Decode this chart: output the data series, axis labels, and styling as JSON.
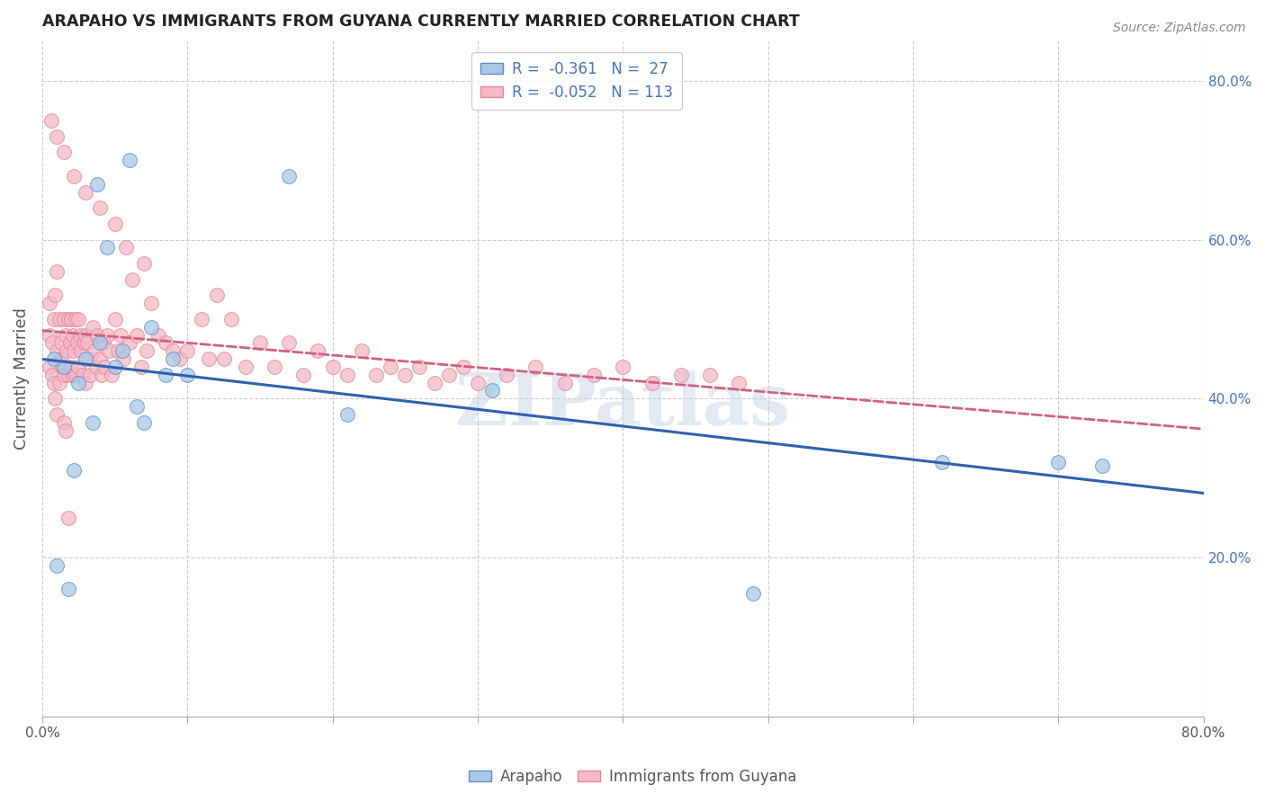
{
  "title": "ARAPAHO VS IMMIGRANTS FROM GUYANA CURRENTLY MARRIED CORRELATION CHART",
  "source": "Source: ZipAtlas.com",
  "ylabel": "Currently Married",
  "xlim": [
    0.0,
    0.8
  ],
  "ylim": [
    0.0,
    0.85
  ],
  "arapaho_color": "#a8c8e8",
  "arapaho_edge": "#6090c0",
  "guyana_color": "#f4b8c8",
  "guyana_edge": "#e08898",
  "trend_arapaho_color": "#3060b0",
  "trend_guyana_color": "#d06080",
  "background_color": "#ffffff",
  "grid_color": "#cccccc",
  "watermark": "ZIPatlas",
  "arapaho_x": [
    0.015,
    0.06,
    0.17,
    0.01,
    0.31,
    0.03,
    0.045,
    0.09,
    0.075,
    0.05,
    0.035,
    0.025,
    0.018,
    0.04,
    0.055,
    0.07,
    0.1,
    0.065,
    0.21,
    0.62,
    0.7,
    0.008,
    0.022,
    0.49,
    0.73,
    0.038,
    0.085
  ],
  "arapaho_y": [
    0.44,
    0.7,
    0.68,
    0.19,
    0.41,
    0.45,
    0.59,
    0.45,
    0.49,
    0.44,
    0.37,
    0.42,
    0.16,
    0.47,
    0.46,
    0.37,
    0.43,
    0.39,
    0.38,
    0.32,
    0.32,
    0.45,
    0.31,
    0.155,
    0.315,
    0.67,
    0.43
  ],
  "guyana_x": [
    0.005,
    0.005,
    0.005,
    0.007,
    0.007,
    0.008,
    0.008,
    0.009,
    0.009,
    0.01,
    0.01,
    0.01,
    0.012,
    0.012,
    0.013,
    0.013,
    0.014,
    0.015,
    0.015,
    0.015,
    0.016,
    0.016,
    0.017,
    0.018,
    0.018,
    0.019,
    0.02,
    0.02,
    0.021,
    0.021,
    0.022,
    0.023,
    0.023,
    0.024,
    0.025,
    0.025,
    0.026,
    0.027,
    0.028,
    0.029,
    0.03,
    0.03,
    0.031,
    0.032,
    0.033,
    0.035,
    0.036,
    0.037,
    0.038,
    0.04,
    0.041,
    0.042,
    0.043,
    0.045,
    0.046,
    0.048,
    0.05,
    0.052,
    0.054,
    0.056,
    0.058,
    0.06,
    0.062,
    0.065,
    0.068,
    0.07,
    0.072,
    0.075,
    0.08,
    0.085,
    0.09,
    0.095,
    0.1,
    0.11,
    0.115,
    0.12,
    0.125,
    0.13,
    0.14,
    0.15,
    0.16,
    0.17,
    0.18,
    0.19,
    0.2,
    0.21,
    0.22,
    0.23,
    0.24,
    0.25,
    0.26,
    0.27,
    0.28,
    0.29,
    0.3,
    0.32,
    0.34,
    0.36,
    0.38,
    0.4,
    0.42,
    0.44,
    0.46,
    0.48,
    0.015,
    0.022,
    0.03,
    0.04,
    0.05,
    0.006,
    0.01,
    0.018
  ],
  "guyana_y": [
    0.48,
    0.44,
    0.52,
    0.47,
    0.43,
    0.5,
    0.42,
    0.53,
    0.4,
    0.56,
    0.46,
    0.38,
    0.5,
    0.42,
    0.47,
    0.45,
    0.44,
    0.5,
    0.43,
    0.37,
    0.48,
    0.36,
    0.46,
    0.5,
    0.43,
    0.47,
    0.5,
    0.44,
    0.48,
    0.43,
    0.46,
    0.5,
    0.43,
    0.47,
    0.5,
    0.44,
    0.48,
    0.46,
    0.43,
    0.47,
    0.48,
    0.42,
    0.47,
    0.45,
    0.43,
    0.49,
    0.46,
    0.44,
    0.48,
    0.45,
    0.43,
    0.47,
    0.44,
    0.48,
    0.46,
    0.43,
    0.5,
    0.46,
    0.48,
    0.45,
    0.59,
    0.47,
    0.55,
    0.48,
    0.44,
    0.57,
    0.46,
    0.52,
    0.48,
    0.47,
    0.46,
    0.45,
    0.46,
    0.5,
    0.45,
    0.53,
    0.45,
    0.5,
    0.44,
    0.47,
    0.44,
    0.47,
    0.43,
    0.46,
    0.44,
    0.43,
    0.46,
    0.43,
    0.44,
    0.43,
    0.44,
    0.42,
    0.43,
    0.44,
    0.42,
    0.43,
    0.44,
    0.42,
    0.43,
    0.44,
    0.42,
    0.43,
    0.43,
    0.42,
    0.71,
    0.68,
    0.66,
    0.64,
    0.62,
    0.75,
    0.73,
    0.25
  ]
}
